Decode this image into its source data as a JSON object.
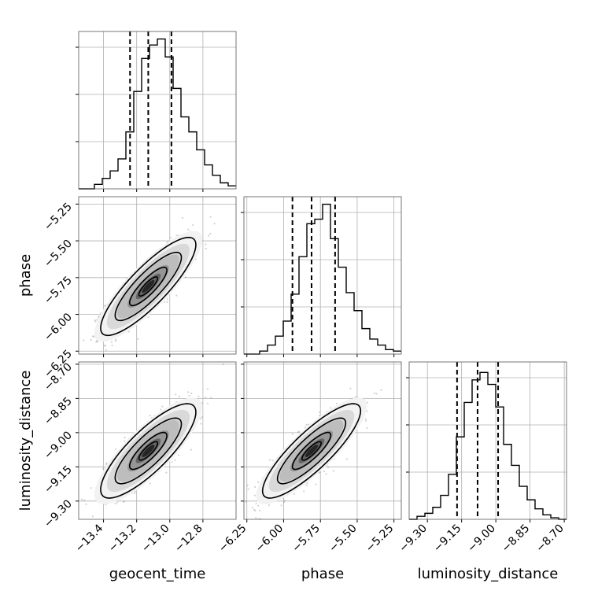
{
  "chart_data": {
    "type": "corner",
    "parameters": [
      {
        "name": "geocent_time",
        "label": "geocent_time",
        "range": [
          -13.55,
          -12.6
        ],
        "ticks": [
          -13.4,
          -13.2,
          -13.0,
          -12.8
        ],
        "tick_labels": [
          "−13.4",
          "−13.2",
          "−13.0",
          "−12.8"
        ],
        "quantiles": [
          -13.24,
          -13.13,
          -12.99
        ],
        "hist": {
          "edges_start": -13.55,
          "bin_width": 0.0475,
          "counts": [
            0,
            0,
            0.03,
            0.07,
            0.12,
            0.2,
            0.38,
            0.65,
            0.87,
            0.96,
            1.0,
            0.88,
            0.67,
            0.48,
            0.38,
            0.26,
            0.16,
            0.09,
            0.04,
            0.02
          ]
        }
      },
      {
        "name": "phase",
        "label": "phase",
        "range": [
          -6.27,
          -5.2
        ],
        "ticks": [
          -6.25,
          -6.0,
          -5.75,
          -5.5,
          -5.25
        ],
        "tick_labels": [
          "−6.25",
          "−6.00",
          "−5.75",
          "−5.50",
          "−5.25"
        ],
        "quantiles": [
          -5.94,
          -5.81,
          -5.65
        ],
        "hist": {
          "edges_start": -6.27,
          "bin_width": 0.0535,
          "counts": [
            0,
            0,
            0.02,
            0.06,
            0.12,
            0.22,
            0.4,
            0.65,
            0.87,
            0.9,
            1.0,
            0.77,
            0.58,
            0.41,
            0.29,
            0.17,
            0.1,
            0.06,
            0.03,
            0.02
          ]
        }
      },
      {
        "name": "luminosity_distance",
        "label": "luminosity_distance",
        "range": [
          -9.38,
          -8.69
        ],
        "ticks": [
          -9.3,
          -9.15,
          -9.0,
          -8.85,
          -8.7
        ],
        "tick_labels": [
          "−9.30",
          "−9.15",
          "−9.00",
          "−8.85",
          "−8.70"
        ],
        "quantiles": [
          -9.17,
          -9.08,
          -8.99
        ],
        "hist": {
          "edges_start": -9.38,
          "bin_width": 0.0345,
          "counts": [
            0,
            0.02,
            0.04,
            0.08,
            0.16,
            0.3,
            0.55,
            0.78,
            0.93,
            0.98,
            0.9,
            0.75,
            0.5,
            0.36,
            0.22,
            0.13,
            0.07,
            0.03,
            0.01,
            0
          ]
        }
      }
    ],
    "correlations": {
      "1-0": 0.85,
      "2-0": 0.82,
      "2-1": 0.85
    },
    "grid": true,
    "colors": {
      "line": "#000000",
      "points": "#808080",
      "grid": "#b0b0b0"
    }
  }
}
